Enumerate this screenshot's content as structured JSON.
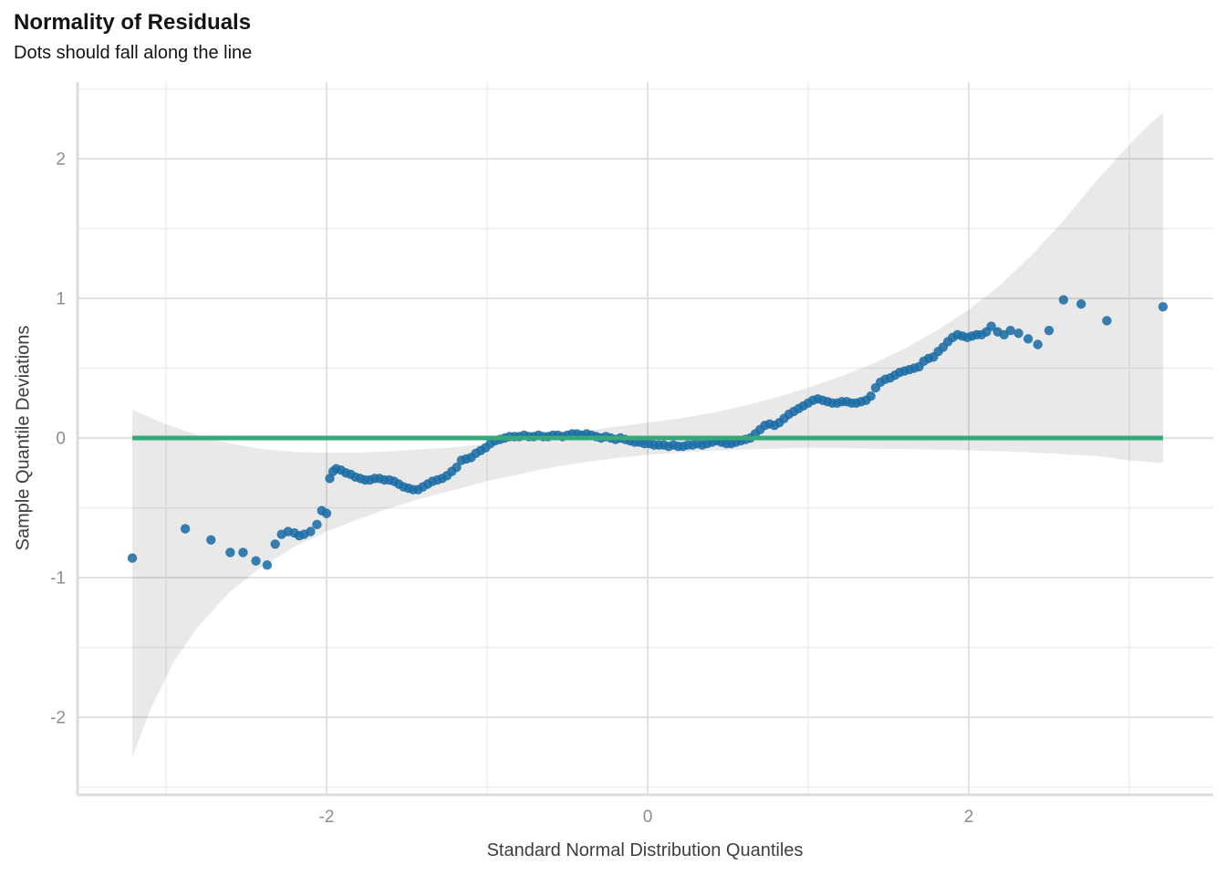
{
  "header": {
    "title": "Normality of Residuals",
    "subtitle": "Dots should fall along the line"
  },
  "chart_data": {
    "type": "scatter",
    "title": "Normality of Residuals",
    "subtitle": "Dots should fall along the line",
    "xlabel": "Standard Normal Distribution Quantiles",
    "ylabel": "Sample Quantile Deviations",
    "xlim": [
      -3.55,
      3.52
    ],
    "ylim": [
      -2.56,
      2.55
    ],
    "grid": "on",
    "legend": "none",
    "x_ticks_major": [
      -2,
      0,
      2
    ],
    "x_tick_labels": [
      "-2",
      "0",
      "2"
    ],
    "x_ticks_minor": [
      -3,
      -1,
      1,
      3
    ],
    "y_ticks_major": [
      -2,
      -1,
      0,
      1,
      2
    ],
    "y_tick_labels": [
      "-2",
      "-1",
      "0",
      "1",
      "2"
    ],
    "y_ticks_minor": [
      -2.5,
      -1.5,
      -0.5,
      0.5,
      1.5,
      2.5
    ],
    "colors": {
      "point": "#1c6da5",
      "point_opacity": 0.87,
      "reference_line": "#38a87a",
      "band_fill": "rgba(0,0,0,0.085)",
      "grid_major": "#e2e2e2",
      "grid_minor": "#ededed",
      "axis_edge": "#dcdcdc",
      "tick_label": "#8c8c8c",
      "axis_title": "#3d3d3d"
    },
    "reference_line": {
      "y": 0,
      "x_start": -3.21,
      "x_end": 3.21
    },
    "band": {
      "top": [
        [
          -3.21,
          0.2
        ],
        [
          -3.0,
          0.1
        ],
        [
          -2.8,
          0.02
        ],
        [
          -2.6,
          -0.04
        ],
        [
          -2.4,
          -0.08
        ],
        [
          -2.2,
          -0.1
        ],
        [
          -2.0,
          -0.105
        ],
        [
          -1.8,
          -0.105
        ],
        [
          -1.6,
          -0.095
        ],
        [
          -1.4,
          -0.08
        ],
        [
          -1.2,
          -0.065
        ],
        [
          -1.0,
          -0.04
        ],
        [
          -0.8,
          -0.01
        ],
        [
          -0.6,
          0.02
        ],
        [
          -0.4,
          0.05
        ],
        [
          -0.2,
          0.08
        ],
        [
          0.0,
          0.11
        ],
        [
          0.2,
          0.14
        ],
        [
          0.4,
          0.18
        ],
        [
          0.6,
          0.23
        ],
        [
          0.8,
          0.29
        ],
        [
          1.0,
          0.36
        ],
        [
          1.2,
          0.44
        ],
        [
          1.4,
          0.53
        ],
        [
          1.6,
          0.64
        ],
        [
          1.8,
          0.77
        ],
        [
          2.0,
          0.92
        ],
        [
          2.2,
          1.1
        ],
        [
          2.4,
          1.32
        ],
        [
          2.6,
          1.57
        ],
        [
          2.8,
          1.85
        ],
        [
          3.0,
          2.1
        ],
        [
          3.1,
          2.22
        ],
        [
          3.21,
          2.33
        ]
      ],
      "bottom": [
        [
          -3.21,
          -2.29
        ],
        [
          -3.1,
          -1.95
        ],
        [
          -2.95,
          -1.6
        ],
        [
          -2.8,
          -1.35
        ],
        [
          -2.6,
          -1.1
        ],
        [
          -2.4,
          -0.92
        ],
        [
          -2.2,
          -0.78
        ],
        [
          -2.0,
          -0.67
        ],
        [
          -1.8,
          -0.58
        ],
        [
          -1.6,
          -0.5
        ],
        [
          -1.4,
          -0.43
        ],
        [
          -1.2,
          -0.37
        ],
        [
          -1.0,
          -0.31
        ],
        [
          -0.8,
          -0.26
        ],
        [
          -0.6,
          -0.21
        ],
        [
          -0.4,
          -0.175
        ],
        [
          -0.2,
          -0.145
        ],
        [
          0.0,
          -0.12
        ],
        [
          0.2,
          -0.105
        ],
        [
          0.4,
          -0.09
        ],
        [
          0.7,
          -0.08
        ],
        [
          1.0,
          -0.07
        ],
        [
          1.3,
          -0.075
        ],
        [
          1.6,
          -0.08
        ],
        [
          1.9,
          -0.085
        ],
        [
          2.2,
          -0.095
        ],
        [
          2.5,
          -0.11
        ],
        [
          2.8,
          -0.13
        ],
        [
          3.0,
          -0.16
        ],
        [
          3.21,
          -0.18
        ]
      ]
    },
    "points": [
      [
        -3.21,
        -0.86
      ],
      [
        -2.88,
        -0.65
      ],
      [
        -2.72,
        -0.73
      ],
      [
        -2.6,
        -0.82
      ],
      [
        -2.52,
        -0.82
      ],
      [
        -2.44,
        -0.88
      ],
      [
        -2.37,
        -0.91
      ],
      [
        -2.32,
        -0.76
      ],
      [
        -2.28,
        -0.69
      ],
      [
        -2.24,
        -0.67
      ],
      [
        -2.2,
        -0.68
      ],
      [
        -2.17,
        -0.7
      ],
      [
        -2.14,
        -0.69
      ],
      [
        -2.1,
        -0.67
      ],
      [
        -2.06,
        -0.62
      ],
      [
        -2.03,
        -0.52
      ],
      [
        -2.0,
        -0.54
      ],
      [
        -1.98,
        -0.29
      ],
      [
        -1.96,
        -0.24
      ],
      [
        -1.94,
        -0.22
      ],
      [
        -1.91,
        -0.23
      ],
      [
        -1.88,
        -0.25
      ],
      [
        -1.85,
        -0.26
      ],
      [
        -1.82,
        -0.28
      ],
      [
        -1.79,
        -0.29
      ],
      [
        -1.76,
        -0.3
      ],
      [
        -1.73,
        -0.3
      ],
      [
        -1.7,
        -0.29
      ],
      [
        -1.67,
        -0.29
      ],
      [
        -1.64,
        -0.3
      ],
      [
        -1.61,
        -0.3
      ],
      [
        -1.58,
        -0.31
      ],
      [
        -1.55,
        -0.33
      ],
      [
        -1.52,
        -0.35
      ],
      [
        -1.49,
        -0.36
      ],
      [
        -1.46,
        -0.37
      ],
      [
        -1.43,
        -0.37
      ],
      [
        -1.4,
        -0.35
      ],
      [
        -1.37,
        -0.33
      ],
      [
        -1.34,
        -0.31
      ],
      [
        -1.31,
        -0.3
      ],
      [
        -1.28,
        -0.29
      ],
      [
        -1.25,
        -0.27
      ],
      [
        -1.22,
        -0.24
      ],
      [
        -1.19,
        -0.21
      ],
      [
        -1.16,
        -0.16
      ],
      [
        -1.13,
        -0.15
      ],
      [
        -1.1,
        -0.14
      ],
      [
        -1.07,
        -0.11
      ],
      [
        -1.04,
        -0.09
      ],
      [
        -1.01,
        -0.07
      ],
      [
        -0.98,
        -0.04
      ],
      [
        -0.95,
        -0.02
      ],
      [
        -0.92,
        -0.01
      ],
      [
        -0.89,
        0.0
      ],
      [
        -0.86,
        0.01
      ],
      [
        -0.83,
        0.01
      ],
      [
        -0.8,
        0.01
      ],
      [
        -0.77,
        0.02
      ],
      [
        -0.74,
        0.01
      ],
      [
        -0.71,
        0.01
      ],
      [
        -0.68,
        0.02
      ],
      [
        -0.65,
        0.01
      ],
      [
        -0.62,
        0.01
      ],
      [
        -0.59,
        0.02
      ],
      [
        -0.56,
        0.02
      ],
      [
        -0.53,
        0.01
      ],
      [
        -0.5,
        0.02
      ],
      [
        -0.47,
        0.03
      ],
      [
        -0.44,
        0.03
      ],
      [
        -0.41,
        0.02
      ],
      [
        -0.38,
        0.03
      ],
      [
        -0.35,
        0.02
      ],
      [
        -0.32,
        0.01
      ],
      [
        -0.29,
        0.0
      ],
      [
        -0.26,
        0.01
      ],
      [
        -0.23,
        0.0
      ],
      [
        -0.2,
        -0.01
      ],
      [
        -0.17,
        0.0
      ],
      [
        -0.14,
        -0.01
      ],
      [
        -0.11,
        -0.02
      ],
      [
        -0.08,
        -0.03
      ],
      [
        -0.05,
        -0.03
      ],
      [
        -0.02,
        -0.04
      ],
      [
        0.01,
        -0.04
      ],
      [
        0.04,
        -0.05
      ],
      [
        0.07,
        -0.05
      ],
      [
        0.1,
        -0.05
      ],
      [
        0.13,
        -0.06
      ],
      [
        0.16,
        -0.05
      ],
      [
        0.19,
        -0.06
      ],
      [
        0.22,
        -0.06
      ],
      [
        0.25,
        -0.05
      ],
      [
        0.28,
        -0.05
      ],
      [
        0.31,
        -0.04
      ],
      [
        0.34,
        -0.05
      ],
      [
        0.37,
        -0.04
      ],
      [
        0.4,
        -0.03
      ],
      [
        0.43,
        -0.02
      ],
      [
        0.46,
        -0.03
      ],
      [
        0.49,
        -0.04
      ],
      [
        0.52,
        -0.04
      ],
      [
        0.55,
        -0.03
      ],
      [
        0.58,
        -0.02
      ],
      [
        0.61,
        -0.01
      ],
      [
        0.64,
        0.0
      ],
      [
        0.67,
        0.03
      ],
      [
        0.7,
        0.06
      ],
      [
        0.73,
        0.09
      ],
      [
        0.76,
        0.1
      ],
      [
        0.79,
        0.09
      ],
      [
        0.82,
        0.11
      ],
      [
        0.85,
        0.14
      ],
      [
        0.88,
        0.17
      ],
      [
        0.91,
        0.19
      ],
      [
        0.94,
        0.21
      ],
      [
        0.97,
        0.23
      ],
      [
        1.0,
        0.25
      ],
      [
        1.03,
        0.27
      ],
      [
        1.06,
        0.28
      ],
      [
        1.09,
        0.27
      ],
      [
        1.12,
        0.26
      ],
      [
        1.15,
        0.25
      ],
      [
        1.18,
        0.25
      ],
      [
        1.21,
        0.26
      ],
      [
        1.24,
        0.26
      ],
      [
        1.27,
        0.25
      ],
      [
        1.3,
        0.25
      ],
      [
        1.33,
        0.26
      ],
      [
        1.36,
        0.27
      ],
      [
        1.39,
        0.3
      ],
      [
        1.42,
        0.36
      ],
      [
        1.45,
        0.4
      ],
      [
        1.48,
        0.42
      ],
      [
        1.51,
        0.43
      ],
      [
        1.54,
        0.45
      ],
      [
        1.57,
        0.47
      ],
      [
        1.6,
        0.48
      ],
      [
        1.63,
        0.49
      ],
      [
        1.66,
        0.5
      ],
      [
        1.69,
        0.51
      ],
      [
        1.72,
        0.55
      ],
      [
        1.75,
        0.57
      ],
      [
        1.78,
        0.58
      ],
      [
        1.81,
        0.62
      ],
      [
        1.84,
        0.65
      ],
      [
        1.87,
        0.69
      ],
      [
        1.9,
        0.72
      ],
      [
        1.93,
        0.74
      ],
      [
        1.96,
        0.73
      ],
      [
        1.99,
        0.72
      ],
      [
        2.02,
        0.73
      ],
      [
        2.05,
        0.74
      ],
      [
        2.08,
        0.74
      ],
      [
        2.11,
        0.76
      ],
      [
        2.14,
        0.8
      ],
      [
        2.18,
        0.76
      ],
      [
        2.22,
        0.74
      ],
      [
        2.26,
        0.77
      ],
      [
        2.31,
        0.75
      ],
      [
        2.37,
        0.71
      ],
      [
        2.43,
        0.67
      ],
      [
        2.5,
        0.77
      ],
      [
        2.59,
        0.99
      ],
      [
        2.7,
        0.96
      ],
      [
        2.86,
        0.84
      ],
      [
        3.21,
        0.94
      ]
    ]
  }
}
